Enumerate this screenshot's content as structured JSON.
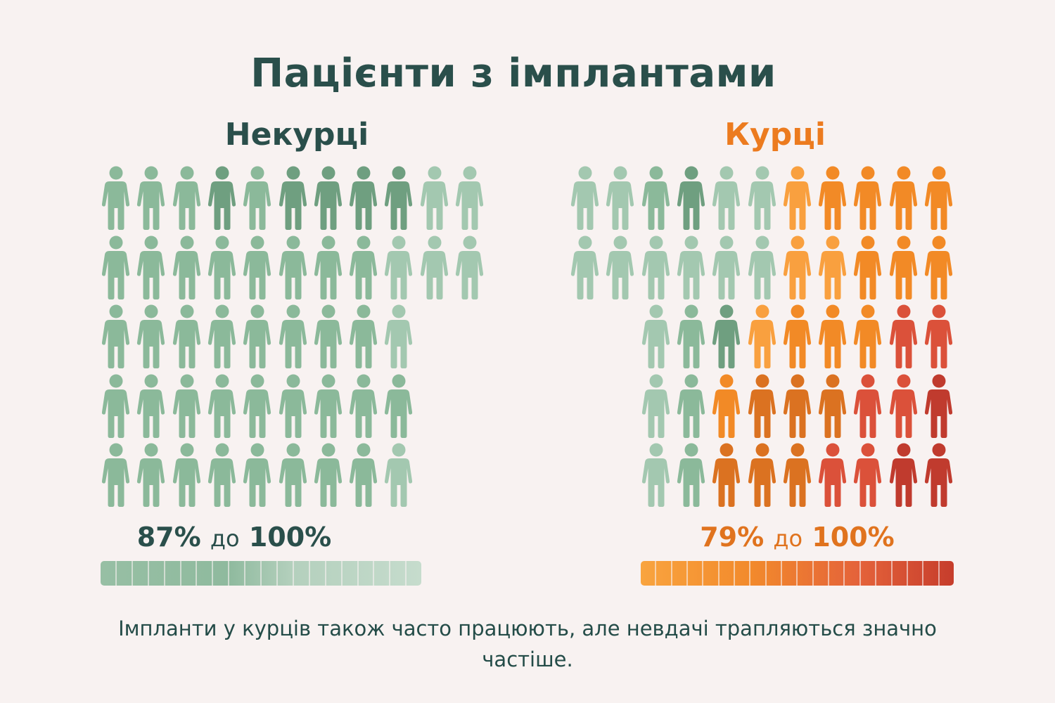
{
  "title": "Пацієнти з імплантами",
  "colors": {
    "lg": "#a3c8b0",
    "g": "#8bb99a",
    "dg": "#6f9f80",
    "lo": "#f9a03f",
    "o": "#f28a26",
    "do": "#db7221",
    "r": "#db513a",
    "dr": "#c03b2e"
  },
  "chart_data": {
    "type": "pictograph",
    "title": "Пацієнти з імплантами",
    "groups": [
      {
        "name": "Некурці",
        "range_value": "87%",
        "range_word": "до",
        "range_max": "100%",
        "range": [
          87,
          100
        ],
        "accent": "#2a4f4b",
        "rows": [
          [
            "g",
            "g",
            "g",
            "dg",
            "g",
            "dg",
            "dg",
            "dg",
            "dg",
            "lg",
            "lg"
          ],
          [
            "g",
            "g",
            "g",
            "g",
            "g",
            "g",
            "g",
            "g",
            "lg",
            "lg",
            "lg"
          ],
          [
            "g",
            "g",
            "g",
            "g",
            "g",
            "g",
            "g",
            "g",
            "lg"
          ],
          [
            "g",
            "g",
            "g",
            "g",
            "g",
            "g",
            "g",
            "g",
            "g"
          ],
          [
            "g",
            "g",
            "g",
            "g",
            "g",
            "g",
            "g",
            "g",
            "lg"
          ]
        ]
      },
      {
        "name": "Курці",
        "range_value": "79%",
        "range_word": "до",
        "range_max": "100%",
        "range": [
          79,
          100
        ],
        "accent": "#ec7b1f",
        "rows": [
          [
            "lg",
            "lg",
            "g",
            "dg",
            "lg",
            "lg",
            "lo",
            "o",
            "o",
            "o",
            "o"
          ],
          [
            "lg",
            "lg",
            "lg",
            "lg",
            "lg",
            "lg",
            "lo",
            "lo",
            "o",
            "o",
            "o"
          ],
          [
            "lg",
            "g",
            "dg",
            "lo",
            "o",
            "o",
            "o",
            "r",
            "r"
          ],
          [
            "lg",
            "g",
            "o",
            "do",
            "do",
            "do",
            "r",
            "r",
            "dr"
          ],
          [
            "lg",
            "g",
            "do",
            "do",
            "do",
            "r",
            "r",
            "dr",
            "dr"
          ]
        ]
      }
    ]
  },
  "caption": "Імпланти у курців також часто працюють, але невдачі трапляються значно частіше."
}
